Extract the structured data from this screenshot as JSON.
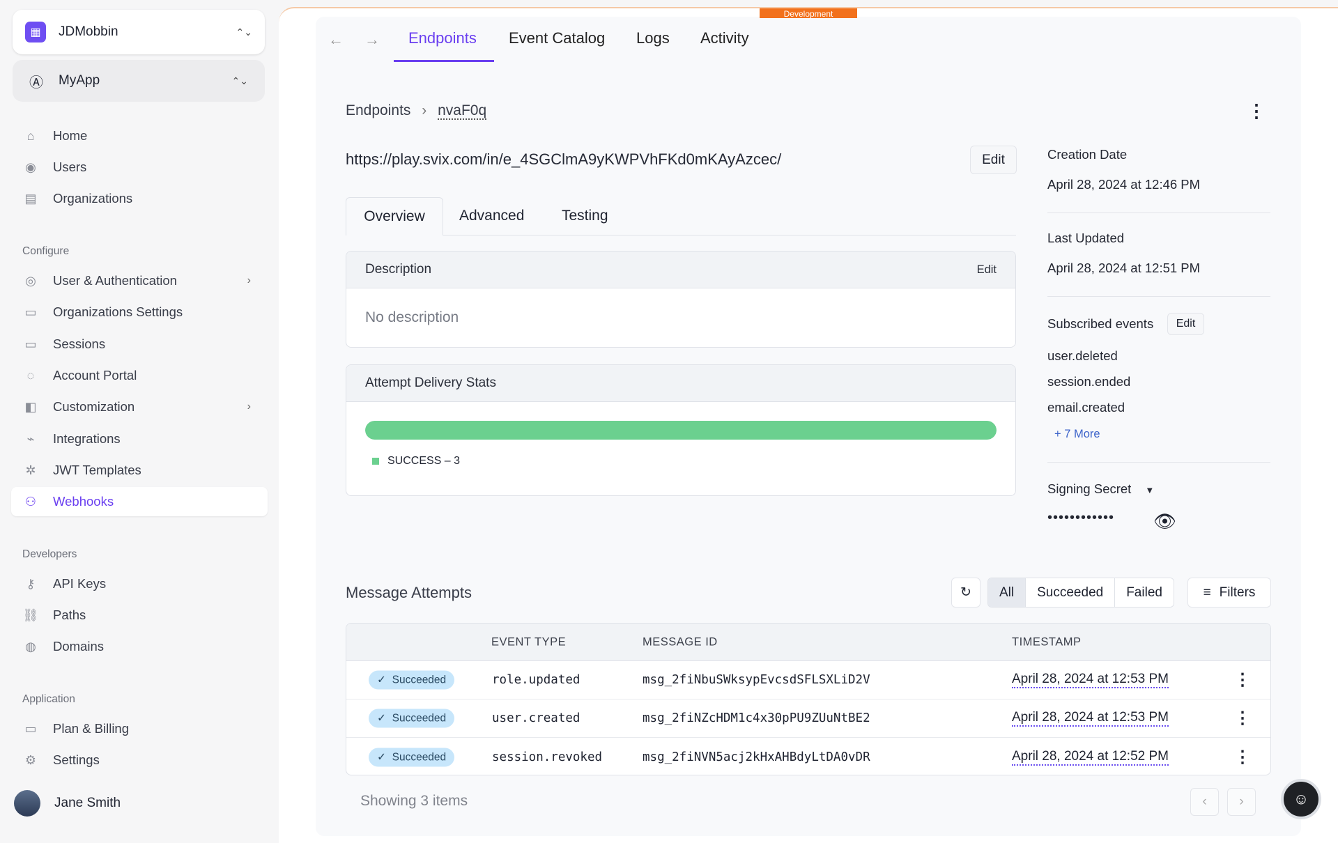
{
  "sidebar": {
    "org": "JDMobbin",
    "app": "MyApp",
    "main_items": [
      {
        "label": "Home",
        "icon": "home-icon"
      },
      {
        "label": "Users",
        "icon": "user-circle-icon"
      },
      {
        "label": "Organizations",
        "icon": "building-icon"
      }
    ],
    "configure_label": "Configure",
    "configure_items": [
      {
        "label": "User & Authentication",
        "icon": "fingerprint-icon"
      },
      {
        "label": "Organizations Settings",
        "icon": "clipboard-icon"
      },
      {
        "label": "Sessions",
        "icon": "sessions-icon"
      },
      {
        "label": "Account Portal",
        "icon": "portal-icon"
      },
      {
        "label": "Customization",
        "icon": "palette-icon"
      },
      {
        "label": "Integrations",
        "icon": "plug-icon"
      },
      {
        "label": "JWT Templates",
        "icon": "gear-badge-icon"
      },
      {
        "label": "Webhooks",
        "icon": "webhook-icon"
      }
    ],
    "developers_label": "Developers",
    "developer_items": [
      {
        "label": "API Keys",
        "icon": "key-icon"
      },
      {
        "label": "Paths",
        "icon": "link-icon"
      },
      {
        "label": "Domains",
        "icon": "globe-icon"
      }
    ],
    "application_label": "Application",
    "application_items": [
      {
        "label": "Plan & Billing",
        "icon": "card-icon"
      },
      {
        "label": "Settings",
        "icon": "gear-icon"
      }
    ],
    "user": "Jane Smith"
  },
  "dev_tag": "Development",
  "tabs": [
    "Endpoints",
    "Event Catalog",
    "Logs",
    "Activity"
  ],
  "breadcrumb": {
    "root": "Endpoints",
    "current": "nvaF0q"
  },
  "endpoint_url": "https://play.svix.com/in/e_4SGClmA9yKWPVhFKd0mKAyAzcec/",
  "edit": "Edit",
  "subtabs": [
    "Overview",
    "Advanced",
    "Testing"
  ],
  "description": {
    "title": "Description",
    "edit": "Edit",
    "text": "No description"
  },
  "stats": {
    "title": "Attempt Delivery Stats",
    "legend": "SUCCESS – 3",
    "success_fraction": 1.0,
    "color": "#6bd08f"
  },
  "details": {
    "creation_label": "Creation Date",
    "creation": "April 28, 2024 at 12:46 PM",
    "updated_label": "Last Updated",
    "updated": "April 28, 2024 at 12:51 PM",
    "subscribed_label": "Subscribed events",
    "edit": "Edit",
    "events": [
      "user.deleted",
      "session.ended",
      "email.created"
    ],
    "more": "+ 7 More",
    "secret_label": "Signing Secret",
    "secret": "••••••••••••"
  },
  "attempts": {
    "title": "Message Attempts",
    "filters": [
      "All",
      "Succeeded",
      "Failed"
    ],
    "filters_button": "Filters",
    "columns": [
      "EVENT TYPE",
      "MESSAGE ID",
      "TIMESTAMP"
    ],
    "rows": [
      {
        "status": "Succeeded",
        "event": "role.updated",
        "id": "msg_2fiNbuSWksypEvcsdSFLSXLiD2V",
        "ts": "April 28, 2024 at 12:53 PM"
      },
      {
        "status": "Succeeded",
        "event": "user.created",
        "id": "msg_2fiNZcHDM1c4x30pPU9ZUuNtBE2",
        "ts": "April 28, 2024 at 12:53 PM"
      },
      {
        "status": "Succeeded",
        "event": "session.revoked",
        "id": "msg_2fiNVN5acj2kHxAHBdyLtDA0vDR",
        "ts": "April 28, 2024 at 12:52 PM"
      }
    ],
    "footer": "Showing 3 items"
  },
  "accent": "#6a3ff0"
}
